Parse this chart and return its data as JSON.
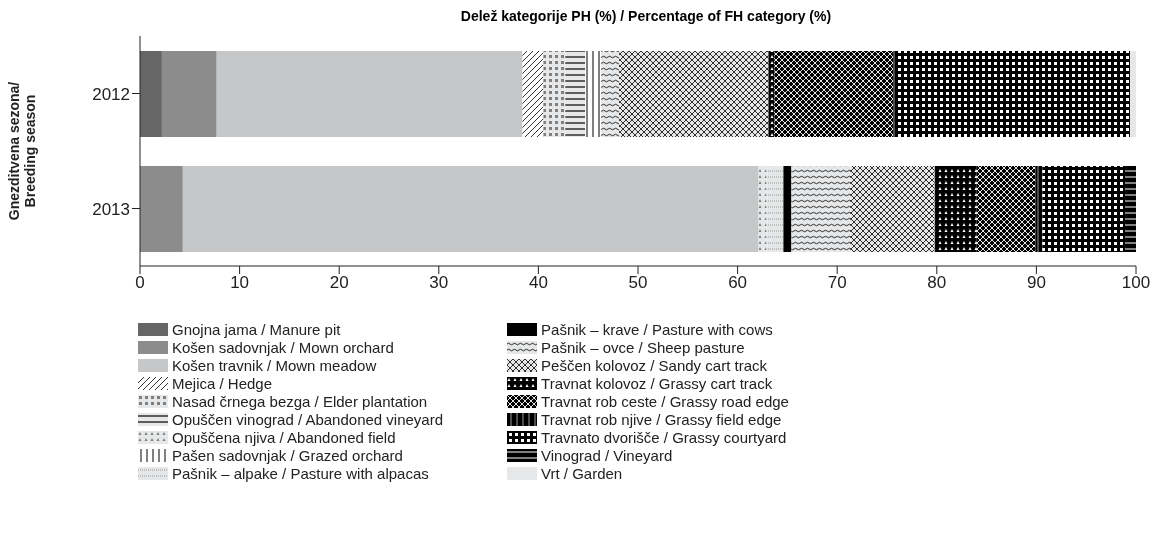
{
  "chart_data": {
    "type": "bar",
    "orientation": "horizontal",
    "stacked": true,
    "title": "Delež kategorije PH (%) / Percentage of FH category (%)",
    "ylabel": "Gnezditvena sezona/\nBreeding season",
    "categories": [
      "2012",
      "2013"
    ],
    "xlim": [
      0,
      100
    ],
    "xticks": [
      0,
      10,
      20,
      30,
      40,
      50,
      60,
      70,
      80,
      90,
      100
    ],
    "grid": false,
    "legend": "bottom",
    "series": [
      {
        "name": "Gnojna jama / Manure pit",
        "color": "#666666",
        "values": [
          2.2,
          null
        ]
      },
      {
        "name": "Košen sadovnjak / Mown orchard",
        "color": "#8c8c8c",
        "values": [
          5.5,
          4.3
        ]
      },
      {
        "name": "Košen travnik / Mown meadow",
        "color": "#c6c7c9",
        "values": [
          30.7,
          57.8
        ]
      },
      {
        "name": "Mejica / Hedge",
        "color": "#ffffff",
        "values": [
          2.1,
          null
        ]
      },
      {
        "name": "Nasad črnega bezga / Elder plantation",
        "color": "#e6e7e8",
        "values": [
          2.2,
          null
        ]
      },
      {
        "name": "Opuščen vinograd / Abandoned vineyard",
        "color": "#e6e7e8",
        "values": [
          2.0,
          null
        ]
      },
      {
        "name": "Opuščena njiva / Abandoned field",
        "color": "#e6e7e8",
        "values": [
          null,
          0.8
        ]
      },
      {
        "name": "Pašen sadovnjak / Grazed orchard",
        "color": "#ffffff",
        "values": [
          1.6,
          null
        ]
      },
      {
        "name": "Pašnik – alpake / Pasture with alpacas",
        "color": "#e6e7e8",
        "values": [
          null,
          1.7
        ]
      },
      {
        "name": "Pašnik – krave / Pasture with cows",
        "color": "#000000",
        "values": [
          null,
          0.8
        ]
      },
      {
        "name": "Pašnik – ovce / Sheep pasture",
        "color": "#e6e7e8",
        "values": [
          1.8,
          5.9
        ]
      },
      {
        "name": "Peščen kolovoz / Sandy cart track",
        "color": "#e6e7e8",
        "values": [
          15.0,
          8.5
        ]
      },
      {
        "name": "Travnat kolovoz / Grassy cart track",
        "color": "#000000",
        "values": [
          0.6,
          4.2
        ]
      },
      {
        "name": "Travnat rob ceste / Grassy road edge",
        "color": "#000000",
        "values": [
          11.9,
          5.9
        ]
      },
      {
        "name": "Travnat rob njive / Grassy field edge",
        "color": "#000000",
        "values": [
          0.2,
          0.7
        ]
      },
      {
        "name": "Travnato dvorišče / Grassy courtyard",
        "color": "#000000",
        "values": [
          23.6,
          8.3
        ]
      },
      {
        "name": "Vinograd / Vineyard",
        "color": "#000000",
        "values": [
          null,
          1.1
        ]
      },
      {
        "name": "Vrt / Garden",
        "color": "#e6e7e8",
        "values": [
          0.6,
          null
        ]
      }
    ]
  }
}
